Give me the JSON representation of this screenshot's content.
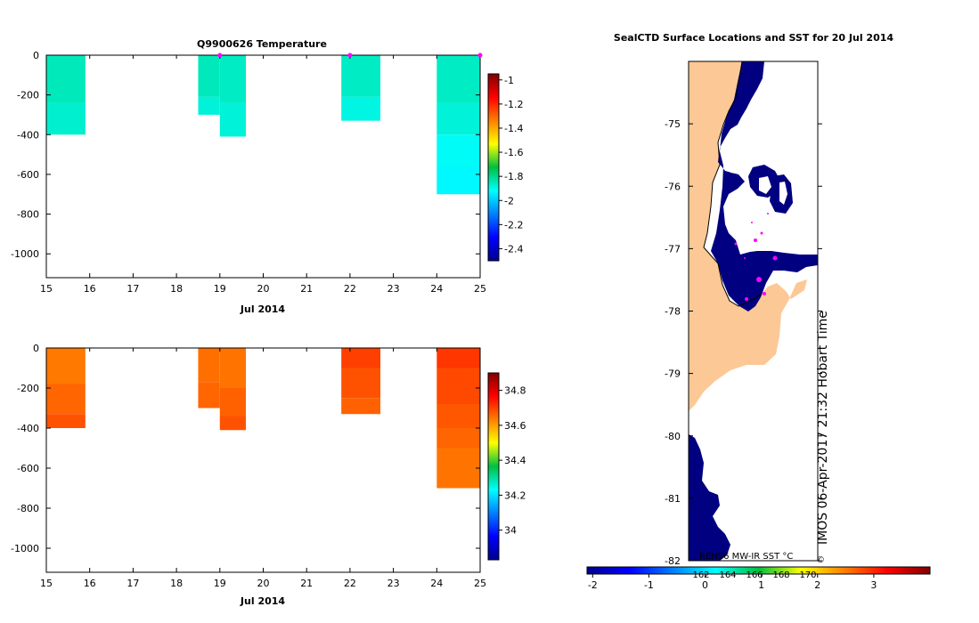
{
  "chart_data": [
    {
      "type": "heatmap",
      "title": "Q9900626  Temperature",
      "xlabel": "Jul 2014",
      "ylabel": "",
      "x_ticks": [
        "15",
        "16",
        "17",
        "18",
        "19",
        "20",
        "21",
        "22",
        "23",
        "24",
        "25"
      ],
      "y_ticks": [
        "0",
        "-200",
        "-400",
        "-600",
        "-800",
        "-1000"
      ],
      "xlim": [
        15,
        25
      ],
      "ylim": [
        -1120,
        0
      ],
      "colorbar": {
        "ticks": [
          "-1",
          "-1.2",
          "-1.4",
          "-1.6",
          "-1.8",
          "-2",
          "-2.2",
          "-2.4"
        ],
        "min": -2.5,
        "max": -0.95
      },
      "surface_markers": [
        19,
        22,
        25
      ],
      "profiles": [
        {
          "x0": 15.0,
          "x1": 15.9,
          "cells": [
            {
              "top": 0,
              "bottom": -240,
              "value": -1.85
            },
            {
              "top": -240,
              "bottom": -400,
              "value": -1.87
            }
          ]
        },
        {
          "x0": 18.5,
          "x1": 19.0,
          "cells": [
            {
              "top": 0,
              "bottom": -210,
              "value": -1.85
            },
            {
              "top": -210,
              "bottom": -300,
              "value": -1.88
            }
          ]
        },
        {
          "x0": 19.0,
          "x1": 19.6,
          "cells": [
            {
              "top": 0,
              "bottom": -240,
              "value": -1.86
            },
            {
              "top": -240,
              "bottom": -410,
              "value": -1.88
            }
          ]
        },
        {
          "x0": 21.8,
          "x1": 22.7,
          "cells": [
            {
              "top": 0,
              "bottom": -210,
              "value": -1.86
            },
            {
              "top": -210,
              "bottom": -330,
              "value": -1.89
            }
          ]
        },
        {
          "x0": 24.0,
          "x1": 25.0,
          "cells": [
            {
              "top": 0,
              "bottom": -240,
              "value": -1.86
            },
            {
              "top": -240,
              "bottom": -400,
              "value": -1.88
            },
            {
              "top": -400,
              "bottom": -560,
              "value": -1.91
            },
            {
              "top": -560,
              "bottom": -700,
              "value": -1.93
            }
          ]
        }
      ]
    },
    {
      "type": "heatmap",
      "title": "",
      "xlabel": "Jul 2014",
      "ylabel": "",
      "x_ticks": [
        "15",
        "16",
        "17",
        "18",
        "19",
        "20",
        "21",
        "22",
        "23",
        "24",
        "25"
      ],
      "y_ticks": [
        "0",
        "-200",
        "-400",
        "-600",
        "-800",
        "-1000"
      ],
      "xlim": [
        15,
        25
      ],
      "ylim": [
        -1120,
        0
      ],
      "colorbar": {
        "ticks": [
          "34.8",
          "34.6",
          "34.4",
          "34.2",
          "34"
        ],
        "min": 33.83,
        "max": 34.9
      },
      "surface_markers": [],
      "profiles": [
        {
          "x0": 15.0,
          "x1": 15.9,
          "cells": [
            {
              "top": 0,
              "bottom": -180,
              "value": 34.64
            },
            {
              "top": -180,
              "bottom": -330,
              "value": 34.66
            },
            {
              "top": -330,
              "bottom": -400,
              "value": 34.68
            }
          ]
        },
        {
          "x0": 18.5,
          "x1": 19.0,
          "cells": [
            {
              "top": 0,
              "bottom": -170,
              "value": 34.65
            },
            {
              "top": -170,
              "bottom": -300,
              "value": 34.66
            }
          ]
        },
        {
          "x0": 19.0,
          "x1": 19.6,
          "cells": [
            {
              "top": 0,
              "bottom": -200,
              "value": 34.645
            },
            {
              "top": -200,
              "bottom": -340,
              "value": 34.665
            },
            {
              "top": -340,
              "bottom": -410,
              "value": 34.68
            }
          ]
        },
        {
          "x0": 21.8,
          "x1": 22.7,
          "cells": [
            {
              "top": 0,
              "bottom": -100,
              "value": 34.7
            },
            {
              "top": -100,
              "bottom": -250,
              "value": 34.68
            },
            {
              "top": -250,
              "bottom": -330,
              "value": 34.665
            }
          ]
        },
        {
          "x0": 24.0,
          "x1": 25.0,
          "cells": [
            {
              "top": 0,
              "bottom": -100,
              "value": 34.71
            },
            {
              "top": -100,
              "bottom": -280,
              "value": 34.69
            },
            {
              "top": -280,
              "bottom": -400,
              "value": 34.675
            },
            {
              "top": -400,
              "bottom": -500,
              "value": 34.66
            },
            {
              "top": -500,
              "bottom": -700,
              "value": 34.645
            }
          ]
        }
      ]
    },
    {
      "type": "map",
      "title": "SealCTD Surface Locations and SST for 20 Jul 2014",
      "y_ticks": [
        "-75",
        "-76",
        "-77",
        "-78",
        "-79",
        "-80",
        "-81",
        "-82"
      ],
      "lat_range": [
        -82,
        -74
      ],
      "colorbar_ticks": [
        "-2",
        "-1",
        "0",
        "1",
        "2",
        "3"
      ],
      "inner_ticks": [
        "162",
        "164",
        "166",
        "168",
        "170"
      ],
      "colorbar_label": "RENS6 MW-IR SST °C",
      "stamp": "IMOS 06-Apr-2017 21:32 Hobart Time",
      "copyright_mark": "©"
    }
  ],
  "colors": {
    "land": "#fcc895",
    "sea_ice": "#ffffff",
    "cold_water": "#000080",
    "marker": "#ff00ff"
  }
}
